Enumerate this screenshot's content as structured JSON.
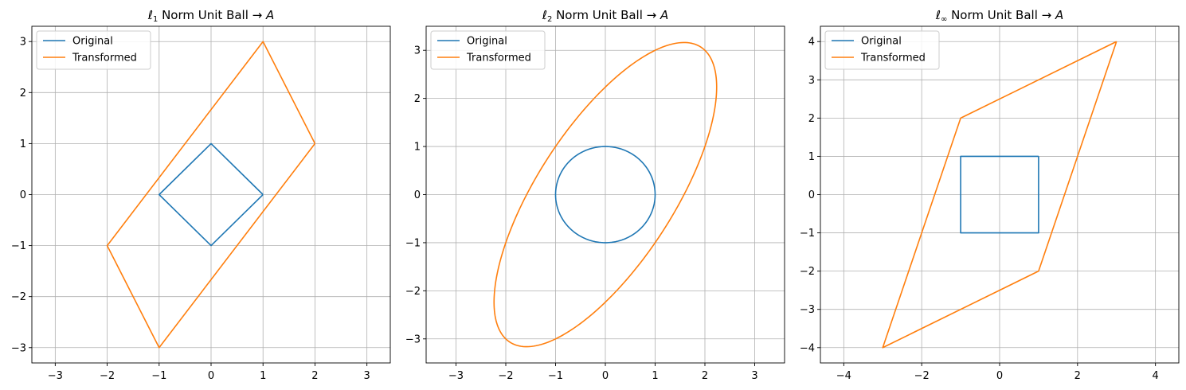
{
  "chart_data": [
    {
      "type": "line",
      "title_symbol": "ℓ",
      "title_sub": "1",
      "title_text": " Norm Unit Ball ",
      "title_suffix": "→ A",
      "xlim": [
        -3.45,
        3.45
      ],
      "ylim": [
        -3.3,
        3.3
      ],
      "xticks": [
        -3,
        -2,
        -1,
        0,
        1,
        2,
        3
      ],
      "yticks": [
        -3,
        -2,
        -1,
        0,
        1,
        2,
        3
      ],
      "grid": true,
      "legend": "upper-left",
      "series": [
        {
          "name": "Original",
          "color": "#1f77b4",
          "x": [
            1,
            0,
            -1,
            0,
            1
          ],
          "y": [
            0,
            1,
            0,
            -1,
            0
          ]
        },
        {
          "name": "Transformed",
          "color": "#ff7f0e",
          "x": [
            2,
            1,
            -2,
            -1,
            2
          ],
          "y": [
            1,
            3,
            -1,
            -3,
            1
          ]
        }
      ]
    },
    {
      "type": "line",
      "title_symbol": "ℓ",
      "title_sub": "2",
      "title_text": " Norm Unit Ball ",
      "title_suffix": "→ A",
      "xlim": [
        -3.6,
        3.6
      ],
      "ylim": [
        -3.5,
        3.5
      ],
      "xticks": [
        -3,
        -2,
        -1,
        0,
        1,
        2,
        3
      ],
      "yticks": [
        -3,
        -2,
        -1,
        0,
        1,
        2,
        3
      ],
      "grid": true,
      "legend": "upper-left",
      "series": [
        {
          "name": "Original",
          "color": "#1f77b4",
          "shape": "unit-circle",
          "matrix": [
            [
              1,
              0
            ],
            [
              0,
              1
            ]
          ]
        },
        {
          "name": "Transformed",
          "color": "#ff7f0e",
          "shape": "unit-circle",
          "matrix": [
            [
              2,
              1
            ],
            [
              1,
              3
            ]
          ]
        }
      ]
    },
    {
      "type": "line",
      "title_symbol": "ℓ",
      "title_sub": "∞",
      "title_text": " Norm Unit Ball ",
      "title_suffix": "→ A",
      "xlim": [
        -4.6,
        4.6
      ],
      "ylim": [
        -4.4,
        4.4
      ],
      "xticks": [
        -4,
        -2,
        0,
        2,
        4
      ],
      "yticks": [
        -4,
        -3,
        -2,
        -1,
        0,
        1,
        2,
        3,
        4
      ],
      "grid": true,
      "legend": "upper-left",
      "series": [
        {
          "name": "Original",
          "color": "#1f77b4",
          "x": [
            1,
            -1,
            -1,
            1,
            1
          ],
          "y": [
            1,
            1,
            -1,
            -1,
            1
          ]
        },
        {
          "name": "Transformed",
          "color": "#ff7f0e",
          "x": [
            3,
            -1,
            -3,
            1,
            3
          ],
          "y": [
            4,
            2,
            -4,
            -2,
            4
          ]
        }
      ]
    }
  ]
}
